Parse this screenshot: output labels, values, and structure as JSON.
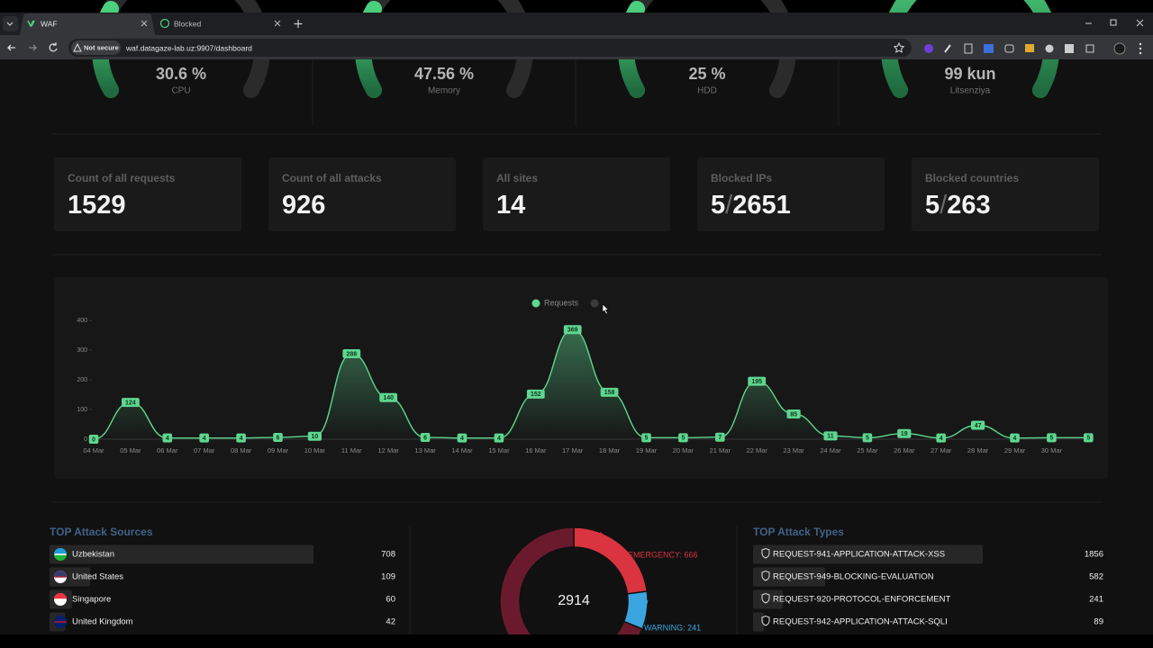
{
  "browser": {
    "tabs": [
      "WAF",
      "Blocked"
    ],
    "security": "Not secure",
    "url": "waf.datagaze-lab.uz:9907/dashboard"
  },
  "gauges": [
    {
      "value": "30.6 %",
      "label": "CPU"
    },
    {
      "value": "47.56 %",
      "label": "Memory"
    },
    {
      "value": "25 %",
      "label": "HDD"
    },
    {
      "value": "99 kun",
      "label": "Litsenziya"
    }
  ],
  "stats": [
    {
      "title": "Count of all requests",
      "value": "1529"
    },
    {
      "title": "Count of all attacks",
      "value": "926"
    },
    {
      "title": "All sites",
      "value": "14"
    },
    {
      "title": "Blocked IPs",
      "value": "5",
      "separator": "/",
      "total": "2651"
    },
    {
      "title": "Blocked countries",
      "value": "5",
      "separator": "/",
      "total": "263"
    }
  ],
  "chart_data": {
    "type": "line",
    "categories": [
      "04 Mar",
      "05 Mar",
      "06 Mar",
      "07 Mar",
      "08 Mar",
      "09 Mar",
      "10 Mar",
      "11 Mar",
      "12 Mar",
      "13 Mar",
      "14 Mar",
      "15 Mar",
      "16 Mar",
      "17 Mar",
      "18 Mar",
      "19 Mar",
      "20 Mar",
      "21 Mar",
      "22 Mar",
      "23 Mar",
      "24 Mar",
      "25 Mar",
      "26 Mar",
      "27 Mar",
      "28 Mar",
      "29 Mar",
      "30 Mar",
      null
    ],
    "series": [
      {
        "name": "Requests",
        "color": "#5ed68f",
        "values": [
          0,
          124,
          4,
          4,
          4,
          6,
          10,
          288,
          140,
          6,
          4,
          4,
          152,
          369,
          158,
          5,
          5,
          7,
          195,
          85,
          11,
          5,
          19,
          4,
          47,
          4,
          5,
          5
        ]
      }
    ],
    "ylim": [
      0,
      400
    ],
    "yticks": [
      0,
      100,
      200,
      300,
      400
    ],
    "data_labels": true
  },
  "attack_sources": {
    "title": "TOP Attack Sources",
    "rows": [
      {
        "name": "Uzbekistan",
        "value": 708
      },
      {
        "name": "United States",
        "value": 109
      },
      {
        "name": "Singapore",
        "value": 60
      },
      {
        "name": "United Kingdom",
        "value": 42
      }
    ]
  },
  "donut": {
    "total": 2914,
    "segments": [
      {
        "label": "EMERGENCY: 666",
        "value": 666,
        "color": "#d9343f"
      },
      {
        "label": "WARNING: 241",
        "value": 241,
        "color": "#3aa5e0"
      },
      {
        "value": 2007,
        "color": "#6b1a2e"
      }
    ]
  },
  "attack_types": {
    "title": "TOP Attack Types",
    "rows": [
      {
        "name": "REQUEST-941-APPLICATION-ATTACK-XSS",
        "value": 1856
      },
      {
        "name": "REQUEST-949-BLOCKING-EVALUATION",
        "value": 582
      },
      {
        "name": "REQUEST-920-PROTOCOL-ENFORCEMENT",
        "value": 241
      },
      {
        "name": "REQUEST-942-APPLICATION-ATTACK-SQLI",
        "value": 89
      }
    ]
  }
}
